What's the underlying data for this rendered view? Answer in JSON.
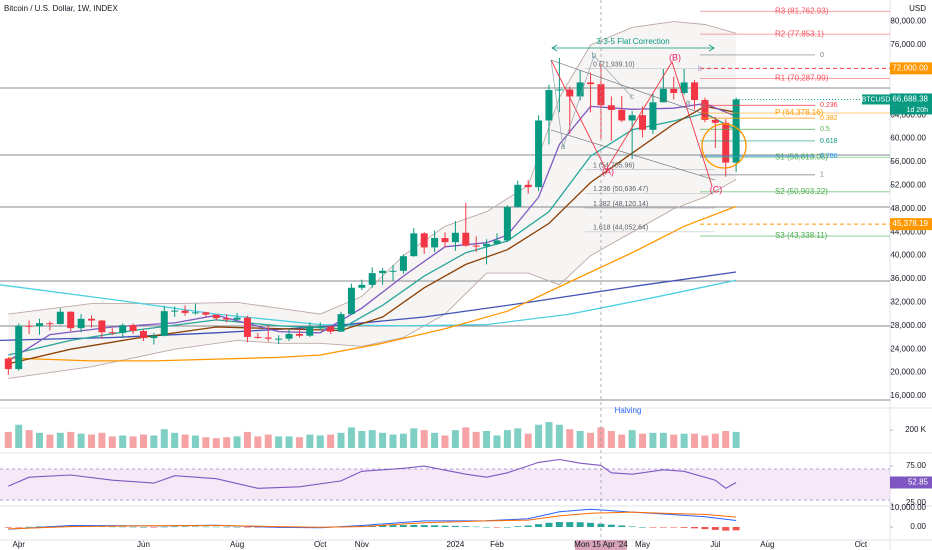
{
  "chart_data": [
    {
      "type": "candlestick",
      "title": "Bitcoin / U.S. Dollar, 1W, INDEX",
      "y_unit": "USD",
      "xlim": [
        -0.8,
        84.8
      ],
      "xticks": [
        {
          "value": 1,
          "label": "Apr"
        },
        {
          "value": 13,
          "label": "Jun"
        },
        {
          "value": 22,
          "label": "Aug"
        },
        {
          "value": 30,
          "label": "Oct"
        },
        {
          "value": 34,
          "label": "Nov"
        },
        {
          "value": 43,
          "label": "2024"
        },
        {
          "value": 47,
          "label": "Feb"
        },
        {
          "value": 61,
          "label": "May"
        },
        {
          "value": 68,
          "label": "Jul"
        },
        {
          "value": 73,
          "label": "Aug"
        },
        {
          "value": 82,
          "label": "Oct"
        }
      ],
      "crosshair": {
        "value": 57,
        "label": "Mon 15 Apr '24"
      },
      "ylim": [
        14460,
        83690
      ],
      "yticks": [
        {
          "value": 16000,
          "label": "16,000.00"
        },
        {
          "value": 20000,
          "label": "20,000.00"
        },
        {
          "value": 24000,
          "label": "24,000.00"
        },
        {
          "value": 28000,
          "label": "28,000.00"
        },
        {
          "value": 32000,
          "label": "32,000.00"
        },
        {
          "value": 36000,
          "label": "36,000.00"
        },
        {
          "value": 40000,
          "label": "40,000.00"
        },
        {
          "value": 44000,
          "label": "44,000.00"
        },
        {
          "value": 48000,
          "label": "48,000.00"
        },
        {
          "value": 52000,
          "label": "52,000.00"
        },
        {
          "value": 56000,
          "label": "56,000.00"
        },
        {
          "value": 60000,
          "label": "60,000.00"
        },
        {
          "value": 64000,
          "label": "64,000.00"
        },
        {
          "value": 76000,
          "label": "76,000.00"
        },
        {
          "value": 80000,
          "label": "80,000.00"
        }
      ],
      "grid": false,
      "up_color": "#089981",
      "down_color": "#f23645",
      "open": [
        22400,
        20600,
        28000,
        27900,
        28450,
        28300,
        30400,
        27600,
        29200,
        28900,
        26900,
        26800,
        28100,
        27100,
        25900,
        26300,
        30500,
        30600,
        30200,
        30300,
        29900,
        29300,
        29050,
        29400,
        26100,
        26000,
        25800,
        25800,
        26600,
        26300,
        27900,
        27900,
        27000,
        30000,
        34500,
        35000,
        37000,
        37400,
        37400,
        39900,
        43800,
        41400,
        43000,
        42300,
        43900,
        41700,
        41600,
        42000,
        42600,
        48300,
        52100,
        51700,
        63100,
        68300,
        68400,
        67200,
        69600,
        69300,
        65700,
        64900,
        63100,
        64000,
        61500,
        66200,
        68500,
        67800,
        69600,
        66600,
        63200,
        62700,
        55900
      ],
      "high": [
        22600,
        28400,
        28900,
        29200,
        28800,
        31000,
        30500,
        30000,
        29800,
        29000,
        27600,
        28400,
        28400,
        27400,
        26800,
        31400,
        31300,
        31500,
        31800,
        30400,
        29900,
        30000,
        30200,
        29700,
        26800,
        28100,
        26400,
        27400,
        27400,
        28600,
        28600,
        28000,
        30400,
        35200,
        35900,
        38000,
        37900,
        38400,
        40200,
        44700,
        44000,
        44300,
        44000,
        45900,
        49000,
        43300,
        42800,
        43800,
        48600,
        52800,
        52900,
        64000,
        69200,
        73800,
        68900,
        71700,
        71300,
        72800,
        67200,
        67300,
        64700,
        65500,
        67700,
        71900,
        70600,
        71900,
        70000,
        67000,
        63700,
        63300,
        67000
      ],
      "low": [
        19600,
        20300,
        26600,
        26500,
        27200,
        28200,
        27100,
        26900,
        27700,
        25800,
        26400,
        25900,
        26600,
        25400,
        24800,
        26200,
        29500,
        29700,
        29900,
        29600,
        28900,
        28600,
        29000,
        25200,
        25800,
        25300,
        24900,
        25400,
        26000,
        26100,
        27200,
        26600,
        26900,
        29900,
        34100,
        34500,
        35000,
        35700,
        36900,
        39800,
        40300,
        40600,
        41400,
        40800,
        41500,
        40600,
        38500,
        41800,
        42300,
        48200,
        50600,
        51000,
        59000,
        64500,
        60800,
        66500,
        64500,
        60000,
        59600,
        62800,
        56500,
        60200,
        60800,
        66200,
        66700,
        67500,
        65000,
        62800,
        58400,
        53500,
        54300
      ],
      "close": [
        20600,
        28000,
        27900,
        28450,
        28300,
        30400,
        27600,
        29200,
        28900,
        26900,
        26800,
        28100,
        27100,
        25900,
        26300,
        30500,
        30600,
        30200,
        30300,
        29900,
        29300,
        29050,
        29400,
        26100,
        26000,
        25800,
        25800,
        26600,
        26300,
        27900,
        27900,
        27000,
        30000,
        34500,
        35000,
        37000,
        37400,
        37400,
        39900,
        43800,
        41400,
        43000,
        42300,
        43900,
        41700,
        41600,
        42000,
        42600,
        48300,
        52100,
        51700,
        63100,
        68300,
        68400,
        67200,
        69600,
        69300,
        65700,
        64900,
        63100,
        64000,
        61500,
        66200,
        68500,
        67800,
        69600,
        66600,
        63200,
        62700,
        55900,
        66688.38
      ],
      "last_price": {
        "value": 66688.38,
        "label": "66,688.38"
      },
      "symbol": "BTCUSD",
      "countdown": "1d 20h",
      "bollinger": {
        "color": "#bcaaa4",
        "fill": "#8d6e63",
        "x": [
          0,
          8,
          16,
          22,
          26,
          30,
          34,
          38,
          42,
          46,
          50,
          53,
          56,
          60,
          64,
          67,
          70
        ],
        "upper": [
          30000,
          31800,
          31800,
          32000,
          31000,
          30000,
          33000,
          40000,
          45000,
          47500,
          52000,
          67000,
          76000,
          79000,
          80000,
          79500,
          78000
        ],
        "lower": [
          19000,
          21000,
          24000,
          25500,
          25000,
          25000,
          24500,
          26000,
          30000,
          37000,
          37000,
          35000,
          40000,
          44000,
          48000,
          50000,
          53000
        ]
      },
      "overlays": [
        {
          "color": "#4dd0e1",
          "x": [
            -0.8,
            10,
            20,
            30,
            38,
            46,
            54,
            62,
            70
          ],
          "values": [
            35000,
            32500,
            30000,
            28200,
            28000,
            28200,
            30000,
            32800,
            35800
          ]
        },
        {
          "color": "#3f51b5",
          "x": [
            -0.8,
            10,
            20,
            30,
            40,
            50,
            60,
            70
          ],
          "values": [
            25500,
            26000,
            26800,
            27800,
            29500,
            32000,
            34700,
            37200
          ]
        },
        {
          "color": "#ff9800",
          "x": [
            0,
            8,
            14,
            20,
            26,
            30,
            36,
            42,
            48,
            54,
            60,
            65,
            70
          ],
          "values": [
            22500,
            22000,
            22000,
            22300,
            22600,
            23000,
            25000,
            27500,
            30500,
            35500,
            40500,
            45000,
            48400
          ]
        },
        {
          "color": "#26a69a",
          "x": [
            0,
            6,
            12,
            20,
            26,
            32,
            36,
            40,
            44,
            48,
            52,
            56,
            60,
            64,
            67,
            70
          ],
          "values": [
            23000,
            25500,
            27200,
            29000,
            28000,
            27500,
            31500,
            36500,
            40500,
            42500,
            47500,
            57000,
            61500,
            63000,
            64300,
            61500
          ]
        },
        {
          "color": "#8d4004",
          "x": [
            0,
            6,
            12,
            20,
            26,
            32,
            36,
            40,
            44,
            48,
            52,
            56,
            60,
            64,
            67,
            70
          ],
          "values": [
            21500,
            24000,
            25800,
            27800,
            27500,
            27200,
            29500,
            34500,
            38500,
            41000,
            45500,
            52500,
            57500,
            62500,
            65500,
            64500
          ]
        },
        {
          "color": "#7e57c2",
          "x": [
            0,
            4,
            10,
            16,
            20,
            26,
            30,
            34,
            38,
            42,
            46,
            48,
            51,
            53,
            56,
            60,
            64,
            67,
            70
          ],
          "values": [
            22000,
            26500,
            27800,
            28500,
            29800,
            27000,
            26800,
            31000,
            36500,
            41500,
            42200,
            43500,
            50000,
            59000,
            65500,
            65000,
            65200,
            66000,
            63800
          ]
        }
      ],
      "pivots": [
        {
          "label": "R3 (81,762.93)",
          "value": 81762.93,
          "color": "#f7525f"
        },
        {
          "label": "R2 (77,853.1)",
          "value": 77853.1,
          "color": "#f7525f"
        },
        {
          "label": "R1 (70,287.99)",
          "value": 70287.99,
          "color": "#f7525f"
        },
        {
          "label": "P (64,378.16)",
          "value": 64378.16,
          "color": "#ff9800"
        },
        {
          "label": "S1 (56,813.05)",
          "value": 56813.05,
          "color": "#4caf50"
        },
        {
          "label": "S2 (50,903.22)",
          "value": 50903.22,
          "color": "#4caf50"
        },
        {
          "label": "S3 (43,338.11)",
          "value": 43338.11,
          "color": "#4caf50"
        }
      ],
      "fib_left": [
        {
          "label": "0 (71,939.10)",
          "value": 71939.1
        },
        {
          "label": "1 (54,705.96)",
          "value": 54705.96
        },
        {
          "label": "1.236 (50,636.47)",
          "value": 50636.47
        },
        {
          "label": "1.382 (48,120.14)",
          "value": 48120.14
        },
        {
          "label": "1.618 (44,052.64)",
          "value": 44052.64
        }
      ],
      "fib_right": [
        {
          "level": 0,
          "price": 74300,
          "color": "#787b86"
        },
        {
          "level": 0.236,
          "price": 65700,
          "color": "#f23645"
        },
        {
          "level": 0.382,
          "price": 63500,
          "color": "#ff9800"
        },
        {
          "level": 0.5,
          "price": 61600,
          "color": "#4caf50"
        },
        {
          "level": 0.618,
          "price": 59600,
          "color": "#089981"
        },
        {
          "level": 0.786,
          "price": 57000,
          "color": "#2196f3"
        },
        {
          "level": 1,
          "price": 53800,
          "color": "#787b86"
        }
      ],
      "price_lines": [
        {
          "value": 72000,
          "label": "72,000.00",
          "color": "#ff9800",
          "line_color": "#f23645"
        },
        {
          "value": 45378.19,
          "label": "45,378.19",
          "color": "#ff9800",
          "line_color": "#ff9800"
        }
      ],
      "annotations": {
        "pattern": "3-3-5 Flat Correction",
        "halving": "Halving",
        "waves": [
          "(A)",
          "(B)",
          "(C)",
          "a",
          "b",
          "c",
          "a",
          "b",
          "c"
        ]
      }
    },
    {
      "type": "bar",
      "ylim": [
        0,
        380
      ],
      "yticks": [
        {
          "value": 200,
          "label": "200 K"
        }
      ],
      "up_color": "#7fcfc4",
      "down_color": "#f5a3a5",
      "values": [
        180,
        260,
        200,
        170,
        150,
        170,
        180,
        160,
        150,
        170,
        130,
        140,
        130,
        150,
        140,
        210,
        170,
        150,
        140,
        120,
        110,
        120,
        130,
        180,
        130,
        150,
        130,
        130,
        120,
        150,
        140,
        150,
        170,
        230,
        190,
        200,
        170,
        150,
        160,
        220,
        200,
        170,
        140,
        200,
        230,
        180,
        190,
        140,
        200,
        220,
        160,
        260,
        290,
        260,
        210,
        190,
        170,
        230,
        190,
        150,
        200,
        160,
        170,
        170,
        150,
        160,
        160,
        140,
        160,
        190,
        180
      ]
    },
    {
      "type": "line",
      "ylim": [
        21,
        86
      ],
      "yticks": [
        {
          "value": 75,
          "label": "75.00"
        },
        {
          "value": 25,
          "label": "25.00"
        }
      ],
      "color": "#7e57c2",
      "x": [
        0,
        2,
        6,
        10,
        14,
        16,
        20,
        24,
        28,
        32,
        34,
        38,
        40,
        44,
        46,
        48,
        51,
        53,
        55,
        57,
        58,
        60,
        63,
        65,
        68,
        69,
        70
      ],
      "values": [
        48,
        60,
        63,
        56,
        52,
        62,
        58,
        45,
        47,
        55,
        68,
        72,
        75,
        64,
        60,
        66,
        80,
        84,
        79,
        76,
        66,
        64,
        70,
        68,
        56,
        45,
        52.85
      ]
    },
    {
      "type": "macd",
      "ylim": [
        -6800,
        11000
      ],
      "yticks": [
        {
          "value": 10000,
          "label": "10,000.00"
        },
        {
          "value": 0,
          "label": "0.00"
        }
      ],
      "up_color": "#26a69a",
      "down_color": "#ef5350",
      "histogram": [
        -300,
        -100,
        100,
        300,
        400,
        500,
        500,
        450,
        400,
        300,
        200,
        150,
        100,
        0,
        -50,
        100,
        200,
        250,
        250,
        200,
        150,
        100,
        50,
        -100,
        -200,
        -300,
        -350,
        -350,
        -300,
        -250,
        -200,
        -150,
        0,
        300,
        600,
        800,
        900,
        950,
        1000,
        1100,
        1000,
        900,
        700,
        600,
        400,
        200,
        0,
        -100,
        0,
        400,
        800,
        1500,
        2200,
        2600,
        2600,
        2500,
        2200,
        1700,
        1200,
        800,
        300,
        0,
        -200,
        -200,
        -250,
        -400,
        -700,
        -1100,
        -1500,
        -1900,
        -1700
      ],
      "series": [
        {
          "color": "#2962ff",
          "x": [
            0,
            6,
            14,
            20,
            26,
            30,
            34,
            40,
            46,
            50,
            53,
            56,
            60,
            64,
            67,
            70
          ],
          "values": [
            -1200,
            800,
            600,
            900,
            -200,
            -400,
            800,
            3200,
            3300,
            4300,
            8000,
            9300,
            7800,
            6500,
            5400,
            3400
          ]
        },
        {
          "color": "#ff6d00",
          "x": [
            0,
            6,
            14,
            20,
            26,
            30,
            34,
            40,
            46,
            50,
            53,
            56,
            60,
            64,
            67,
            70
          ],
          "values": [
            -1000,
            200,
            700,
            800,
            200,
            -100,
            200,
            2200,
            3200,
            3600,
            5800,
            7200,
            7800,
            7000,
            6600,
            5200
          ]
        }
      ]
    }
  ]
}
